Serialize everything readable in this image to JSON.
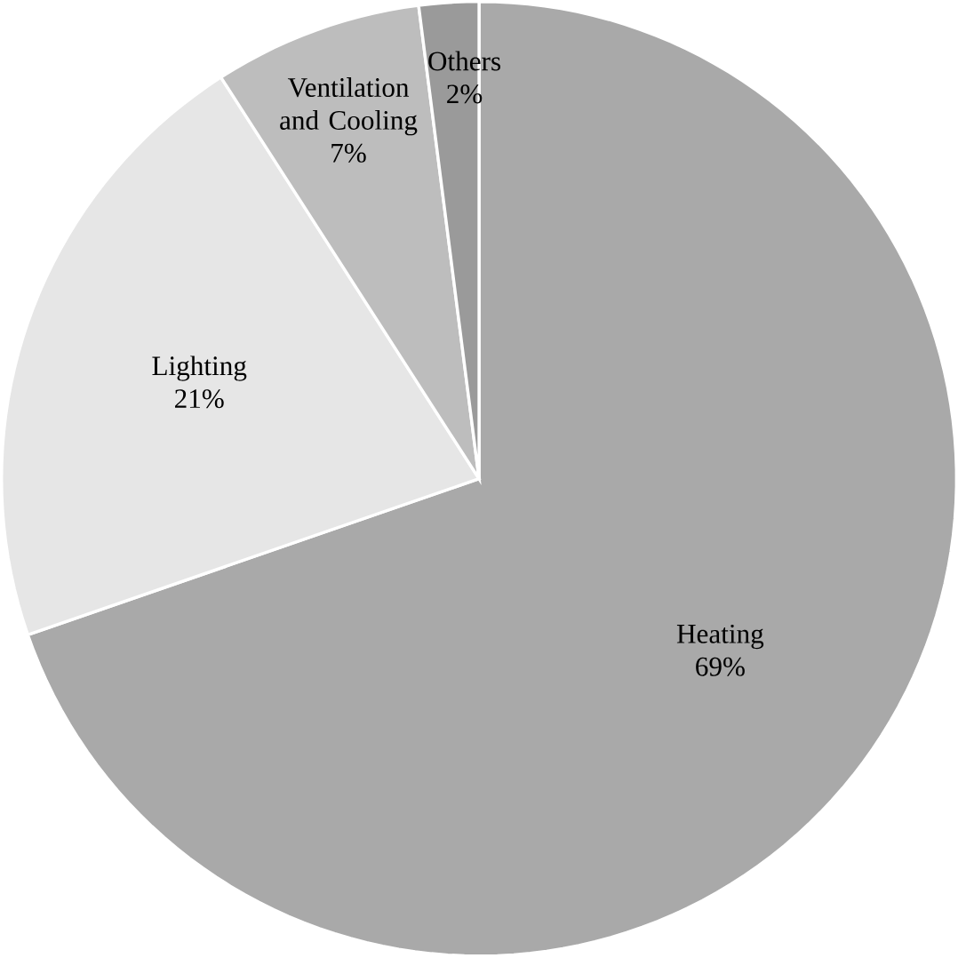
{
  "chart_data": {
    "type": "pie",
    "categories": [
      "Heating",
      "Lighting",
      "Ventilation and Cooling",
      "Others"
    ],
    "values": [
      69,
      21,
      7,
      2
    ],
    "colors": [
      "#a9a9a9",
      "#e6e6e6",
      "#bdbdbd",
      "#9a9a9a"
    ],
    "value_labels": [
      "69%",
      "21%",
      "7%",
      "2%"
    ]
  }
}
